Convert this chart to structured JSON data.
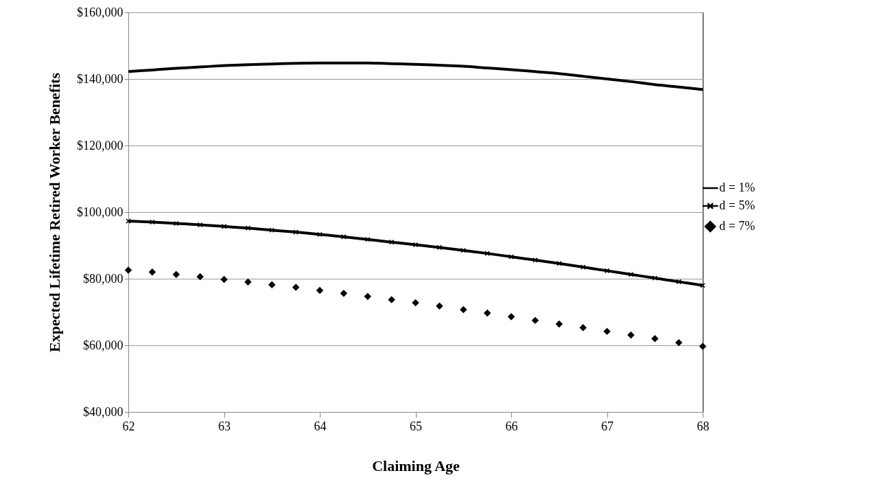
{
  "chart_data": {
    "type": "line",
    "xlabel": "Claiming Age",
    "ylabel": "Expected Lifetime Retired Worker Benefits",
    "x": [
      62,
      62.25,
      62.5,
      62.75,
      63,
      63.25,
      63.5,
      63.75,
      64,
      64.25,
      64.5,
      64.75,
      65,
      65.25,
      65.5,
      65.75,
      66,
      66.25,
      66.5,
      66.75,
      67,
      67.25,
      67.5,
      67.75,
      68
    ],
    "series": [
      {
        "name": "d = 1%",
        "type": "line",
        "marker": "none",
        "color": "#000000",
        "values": [
          142200,
          142700,
          143200,
          143600,
          144000,
          144300,
          144500,
          144700,
          144800,
          144800,
          144800,
          144600,
          144400,
          144100,
          143800,
          143300,
          142800,
          142200,
          141600,
          140800,
          140000,
          139200,
          138300,
          137600,
          136800
        ]
      },
      {
        "name": "d = 5%",
        "type": "line",
        "marker": "cross",
        "color": "#000000",
        "values": [
          97300,
          97000,
          96600,
          96200,
          95700,
          95200,
          94600,
          94000,
          93300,
          92600,
          91800,
          91000,
          90200,
          89400,
          88500,
          87600,
          86600,
          85600,
          84600,
          83500,
          82400,
          81300,
          80200,
          79100,
          78000
        ]
      },
      {
        "name": "d = 7%",
        "type": "scatter",
        "marker": "diamond",
        "color": "#000000",
        "values": [
          82600,
          82000,
          81300,
          80600,
          79800,
          79000,
          78200,
          77400,
          76500,
          75600,
          74700,
          73700,
          72800,
          71800,
          70700,
          69700,
          68600,
          67500,
          66400,
          65300,
          64200,
          63100,
          62000,
          60800,
          59700
        ]
      }
    ],
    "xlim": [
      62,
      68
    ],
    "xticks": [
      62,
      63,
      64,
      65,
      66,
      67,
      68
    ],
    "ylim": [
      40000,
      160000
    ],
    "yticks": [
      {
        "value": 40000,
        "label": "$40,000"
      },
      {
        "value": 60000,
        "label": "$60,000"
      },
      {
        "value": 80000,
        "label": "$80,000"
      },
      {
        "value": 100000,
        "label": "$100,000"
      },
      {
        "value": 120000,
        "label": "$120,000"
      },
      {
        "value": 140000,
        "label": "$140,000"
      },
      {
        "value": 160000,
        "label": "$160,000"
      }
    ],
    "grid": "y",
    "legend": "right"
  }
}
